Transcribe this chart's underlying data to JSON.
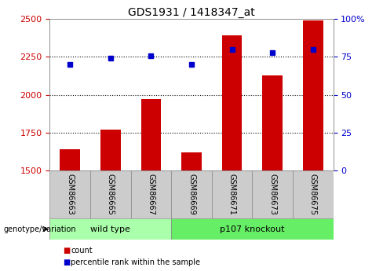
{
  "title": "GDS1931 / 1418347_at",
  "categories": [
    "GSM86663",
    "GSM86665",
    "GSM86667",
    "GSM86669",
    "GSM86671",
    "GSM86673",
    "GSM86675"
  ],
  "bar_values": [
    1640,
    1770,
    1975,
    1620,
    2390,
    2130,
    2490
  ],
  "dot_values": [
    70,
    74,
    76,
    70,
    80,
    78,
    80
  ],
  "bar_color": "#cc0000",
  "dot_color": "#0000cc",
  "ylim_left": [
    1500,
    2500
  ],
  "ylim_right": [
    0,
    100
  ],
  "yticks_left": [
    1500,
    1750,
    2000,
    2250,
    2500
  ],
  "yticks_right": [
    0,
    25,
    50,
    75,
    100
  ],
  "ytick_labels_right": [
    "0",
    "25",
    "50",
    "75",
    "100%"
  ],
  "group1_label": "wild type",
  "group2_label": "p107 knockout",
  "group1_indices": [
    0,
    1,
    2
  ],
  "group2_indices": [
    3,
    4,
    5,
    6
  ],
  "genotype_label": "genotype/variation",
  "legend_bar_label": "count",
  "legend_dot_label": "percentile rank within the sample",
  "grid_color": "#000000",
  "axis_label_color_left": "#cc0000",
  "axis_label_color_right": "#0000cc",
  "tick_box_color": "#cccccc",
  "group1_color": "#aaffaa",
  "group2_color": "#66ee66",
  "bar_bottom": 1500,
  "figure_bg": "#ffffff",
  "bar_width": 0.5
}
